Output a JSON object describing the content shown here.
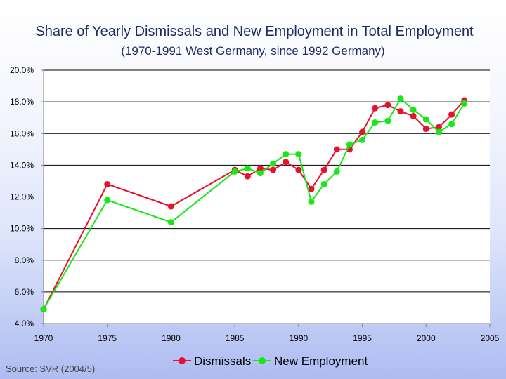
{
  "chart_data": {
    "type": "line",
    "title": "Share of Yearly Dismissals and New Employment in Total Employment",
    "subtitle": "(1970-1991 West Germany, since 1992 Germany)",
    "xlabel": "",
    "ylabel": "",
    "xlim": [
      1970,
      2005
    ],
    "ylim": [
      4.0,
      20.0
    ],
    "x_ticks": [
      "1970",
      "1975",
      "1980",
      "1985",
      "1990",
      "1995",
      "2000",
      "2005"
    ],
    "y_ticks": [
      "4.0%",
      "6.0%",
      "8.0%",
      "10.0%",
      "12.0%",
      "14.0%",
      "16.0%",
      "18.0%",
      "20.0%"
    ],
    "grid": "horizontal",
    "legend_position": "bottom",
    "series": [
      {
        "name": "Dismissals",
        "color": "#e8112d",
        "x": [
          1970,
          1975,
          1980,
          1985,
          1986,
          1987,
          1988,
          1989,
          1990,
          1991,
          1992,
          1993,
          1994,
          1995,
          1996,
          1997,
          1998,
          1999,
          2000,
          2001,
          2002,
          2003
        ],
        "values": [
          4.9,
          12.8,
          11.4,
          13.7,
          13.3,
          13.8,
          13.7,
          14.2,
          13.7,
          12.5,
          13.7,
          15.0,
          15.0,
          16.1,
          17.6,
          17.8,
          17.4,
          17.1,
          16.3,
          16.4,
          17.2,
          18.1
        ]
      },
      {
        "name": "New Employment",
        "color": "#17e817",
        "x": [
          1970,
          1975,
          1980,
          1985,
          1986,
          1987,
          1988,
          1989,
          1990,
          1991,
          1992,
          1993,
          1994,
          1995,
          1996,
          1997,
          1998,
          1999,
          2000,
          2001,
          2002,
          2003
        ],
        "values": [
          4.9,
          11.8,
          10.4,
          13.6,
          13.8,
          13.5,
          14.1,
          14.7,
          14.7,
          11.7,
          12.8,
          13.6,
          15.3,
          15.6,
          16.7,
          16.8,
          18.2,
          17.5,
          16.9,
          16.1,
          16.6,
          17.9
        ]
      }
    ],
    "source": "Source: SVR (2004/5)"
  }
}
